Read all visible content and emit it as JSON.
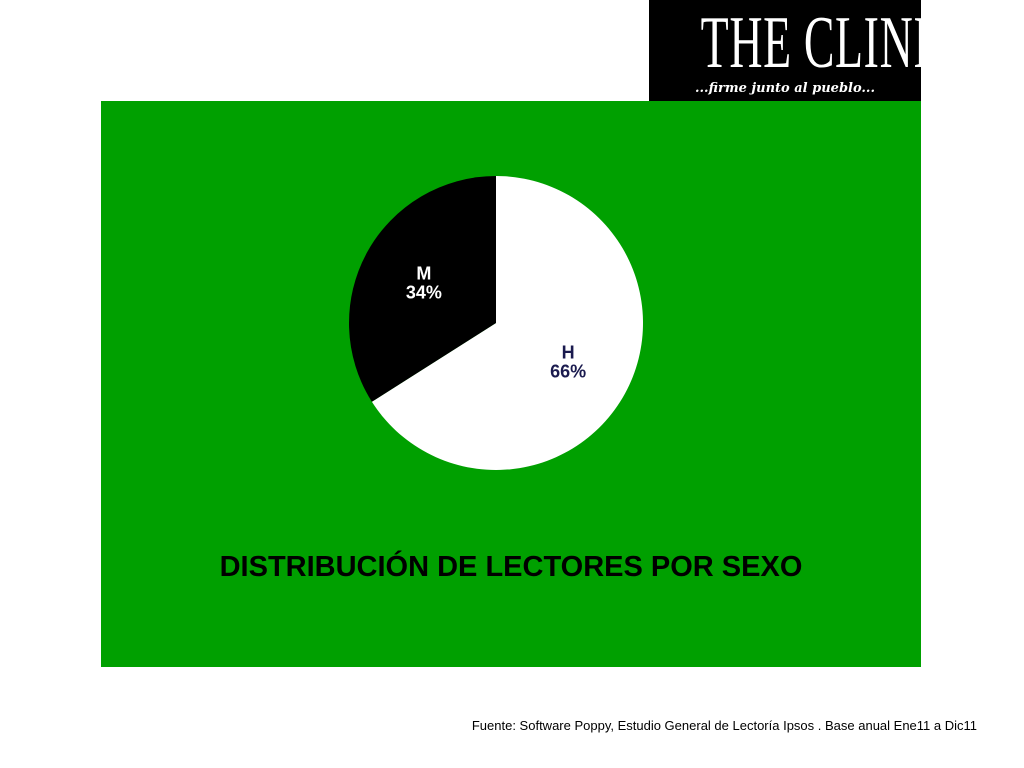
{
  "logo": {
    "title": "THE CLINIC",
    "tagline": "...firme junto al pueblo..."
  },
  "chart_data": {
    "type": "pie",
    "title": "DISTRIBUCIÓN DE LECTORES POR SEXO",
    "slices": [
      {
        "label": "H",
        "value": 66,
        "value_label": "66%",
        "color": "#ffffff",
        "text_color": "#1a1a4e"
      },
      {
        "label": "M",
        "value": 34,
        "value_label": "34%",
        "color": "#000000",
        "text_color": "#ffffff"
      }
    ],
    "legend": "none",
    "background": "#00a000"
  },
  "footer": {
    "source": "Fuente: Software Poppy, Estudio General de Lectoría Ipsos . Base anual Ene11 a Dic11"
  }
}
